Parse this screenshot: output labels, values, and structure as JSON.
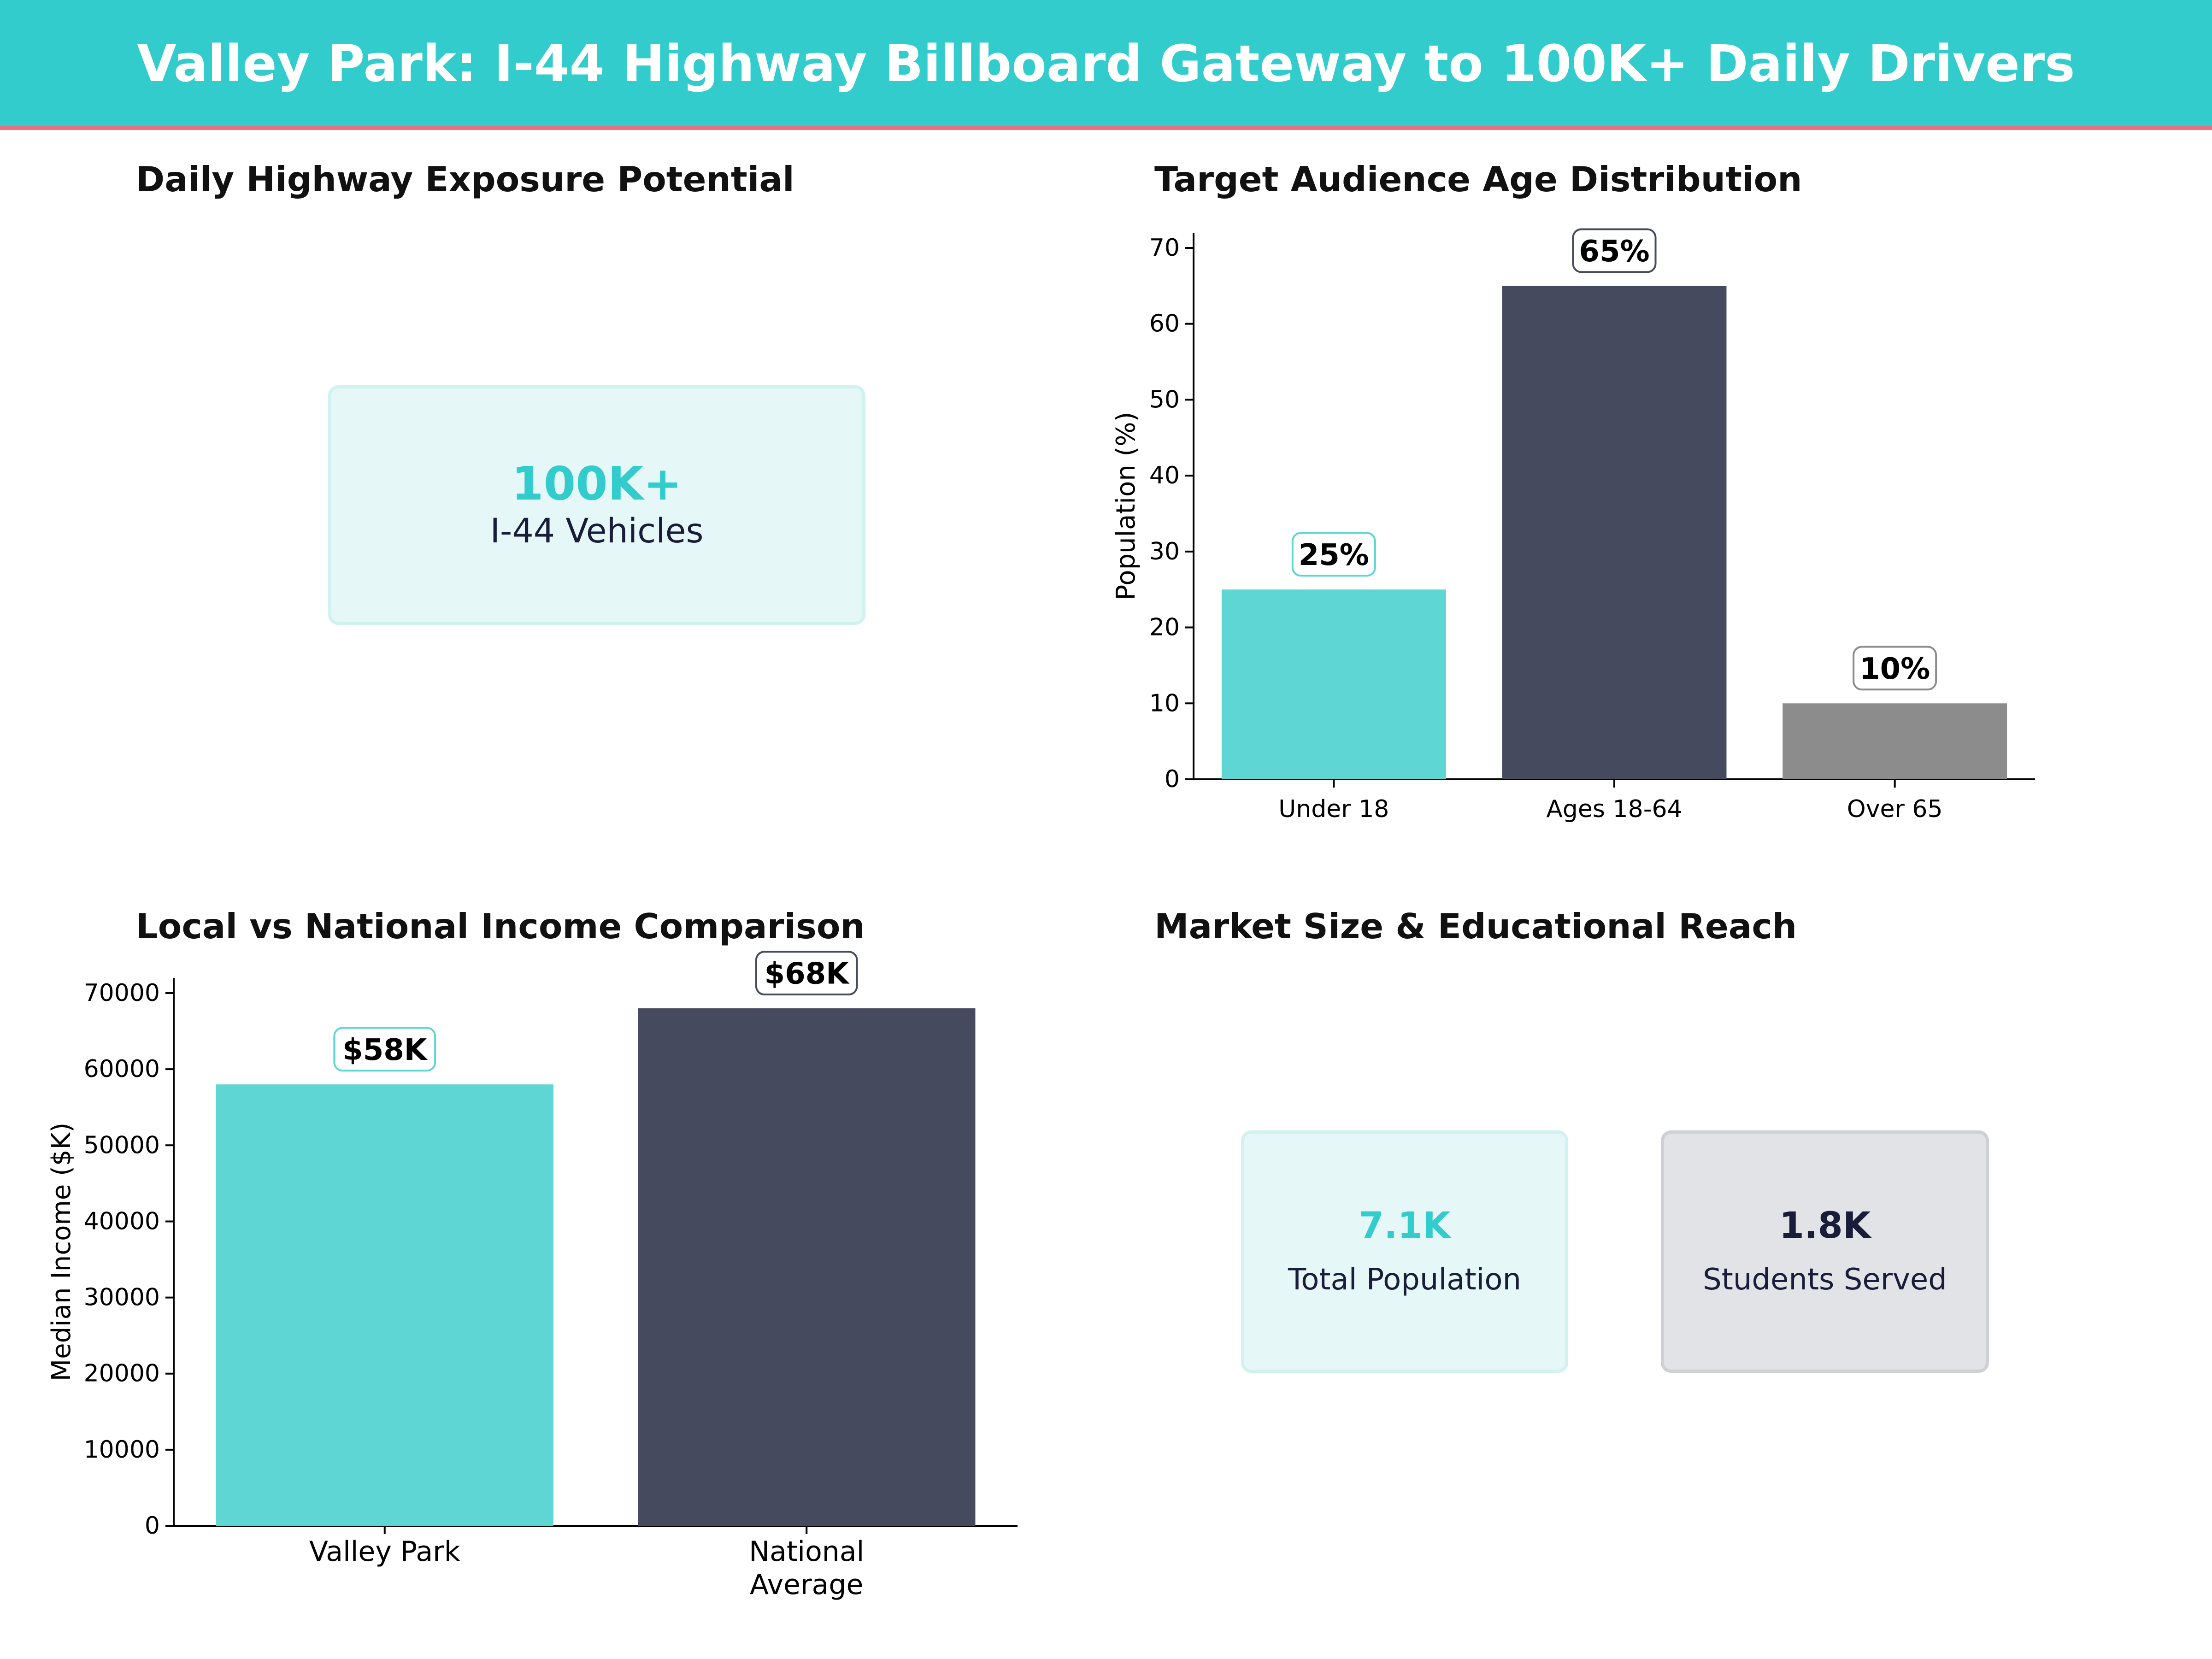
{
  "header": {
    "title": "Valley Park: I-44 Highway Billboard Gateway to 100K+ Daily Drivers"
  },
  "panels": {
    "exposure": {
      "title": "Daily Highway Exposure Potential",
      "value": "100K+",
      "label": "I-44 Vehicles"
    },
    "market": {
      "title": "Market Size & Educational Reach",
      "cards": [
        {
          "value": "7.1K",
          "label": "Total Population"
        },
        {
          "value": "1.8K",
          "label": "Students Served"
        }
      ]
    }
  },
  "colors": {
    "teal": "#5dd6d4",
    "navy": "#464a5f",
    "gray": "#8c8c8c",
    "banner": "#33cccc",
    "accent_line": "#e8707f",
    "dark_text": "#1a1d3a"
  },
  "chart_data": [
    {
      "type": "bar",
      "title": "Target Audience Age Distribution",
      "categories": [
        "Under 18",
        "Ages 18-64",
        "Over 65"
      ],
      "values": [
        25,
        65,
        10
      ],
      "data_labels": [
        "25%",
        "65%",
        "10%"
      ],
      "bar_colors": [
        "#5dd6d4",
        "#464a5f",
        "#8c8c8c"
      ],
      "label_border_colors": [
        "#5dd6d4",
        "#464a5f",
        "#8c8c8c"
      ],
      "xlabel": "",
      "ylabel": "Population (%)",
      "ylim": [
        0,
        72
      ],
      "yticks": [
        0,
        10,
        20,
        30,
        40,
        50,
        60,
        70
      ],
      "grid": false
    },
    {
      "type": "bar",
      "title": "Local vs National Income Comparison",
      "categories": [
        "Valley Park",
        "National\nAverage"
      ],
      "values": [
        58000,
        68000
      ],
      "data_labels": [
        "$58K",
        "$68K"
      ],
      "bar_colors": [
        "#5dd6d4",
        "#464a5f"
      ],
      "label_border_colors": [
        "#5dd6d4",
        "#464a5f"
      ],
      "xlabel": "",
      "ylabel": "Median Income ($K)",
      "ylim": [
        0,
        72000
      ],
      "yticks": [
        0,
        10000,
        20000,
        30000,
        40000,
        50000,
        60000,
        70000
      ],
      "grid": false
    }
  ]
}
